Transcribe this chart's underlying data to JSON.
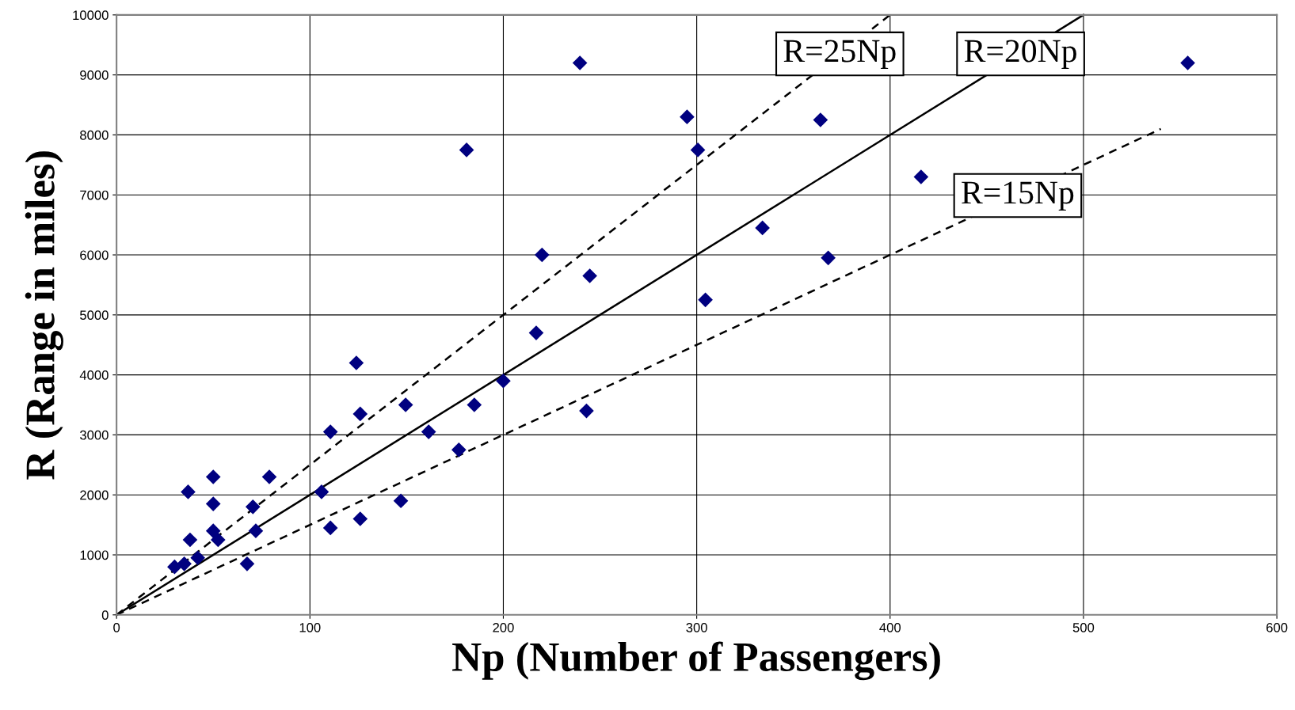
{
  "chart_data": {
    "type": "scatter",
    "xlabel": "Np (Number of Passengers)",
    "ylabel": "R (Range in miles)",
    "xlim": [
      0,
      600
    ],
    "ylim": [
      0,
      10000
    ],
    "xticks": [
      0,
      100,
      200,
      300,
      400,
      500,
      600
    ],
    "yticks": [
      0,
      1000,
      2000,
      3000,
      4000,
      5000,
      6000,
      7000,
      8000,
      9000,
      10000
    ],
    "grid": true,
    "series": [
      {
        "color": "#000080",
        "marker": "diamond",
        "x": [
          30,
          35,
          42,
          37,
          38,
          50,
          50,
          50,
          52.5,
          67.5,
          70.5,
          72,
          79,
          106,
          110.6,
          110.6,
          124,
          126,
          126,
          147,
          149.5,
          161.4,
          177,
          181,
          185,
          200,
          217,
          220,
          239.6,
          243,
          244.7,
          295,
          300.6,
          304.5,
          334,
          364,
          368,
          416,
          553.9
        ],
        "values": [
          800,
          850,
          950,
          2050,
          1250,
          2300,
          1850,
          1400,
          1250,
          850,
          1800,
          1400,
          2300,
          2050,
          3050,
          1450,
          4200,
          3350,
          1600,
          1900,
          3500,
          3050,
          2750,
          7750,
          3500,
          3900,
          4700,
          6000,
          9200,
          3400,
          5650,
          8300,
          7750,
          5250,
          6450,
          8250,
          5950,
          7300,
          9200
        ]
      },
      {
        "type": "line",
        "color": "#000000",
        "line_style": "dashed",
        "marker": "none",
        "x": [
          0,
          400
        ],
        "values": [
          0,
          10000
        ]
      },
      {
        "type": "line",
        "color": "#000000",
        "line_style": "solid",
        "marker": "none",
        "x": [
          0,
          500
        ],
        "values": [
          0,
          10000
        ]
      },
      {
        "type": "line",
        "color": "#000000",
        "line_style": "dashed",
        "marker": "none",
        "x": [
          0,
          540
        ],
        "values": [
          0,
          8100
        ]
      }
    ],
    "annotations": [
      {
        "text": "R=25Np",
        "x": 374,
        "y": 9350
      },
      {
        "text": "R=20Np",
        "x": 467.5,
        "y": 9350
      },
      {
        "text": "R=15Np",
        "x": 466,
        "y": 6990
      }
    ]
  }
}
